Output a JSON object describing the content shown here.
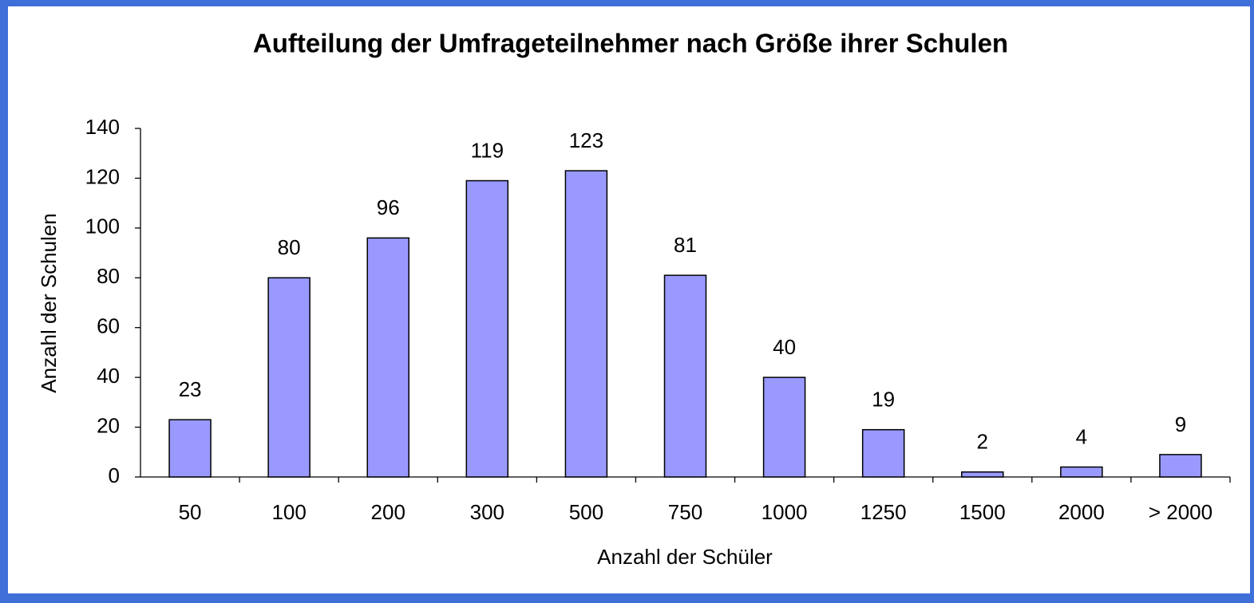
{
  "chart_data": {
    "type": "bar",
    "title": "Aufteilung der Umfrageteilnehmer nach Größe ihrer Schulen",
    "x_label": "Anzahl der Schüler",
    "y_label": "Anzahl der Schulen",
    "categories": [
      "50",
      "100",
      "200",
      "300",
      "500",
      "750",
      "1000",
      "1250",
      "1500",
      "2000",
      "> 2000"
    ],
    "values": [
      23,
      80,
      96,
      119,
      123,
      81,
      40,
      19,
      2,
      4,
      9
    ],
    "color": "#9999ff",
    "ylim": [
      0,
      140
    ],
    "yticks": [
      0,
      20,
      40,
      60,
      80,
      100,
      120,
      140
    ],
    "grid": false
  }
}
